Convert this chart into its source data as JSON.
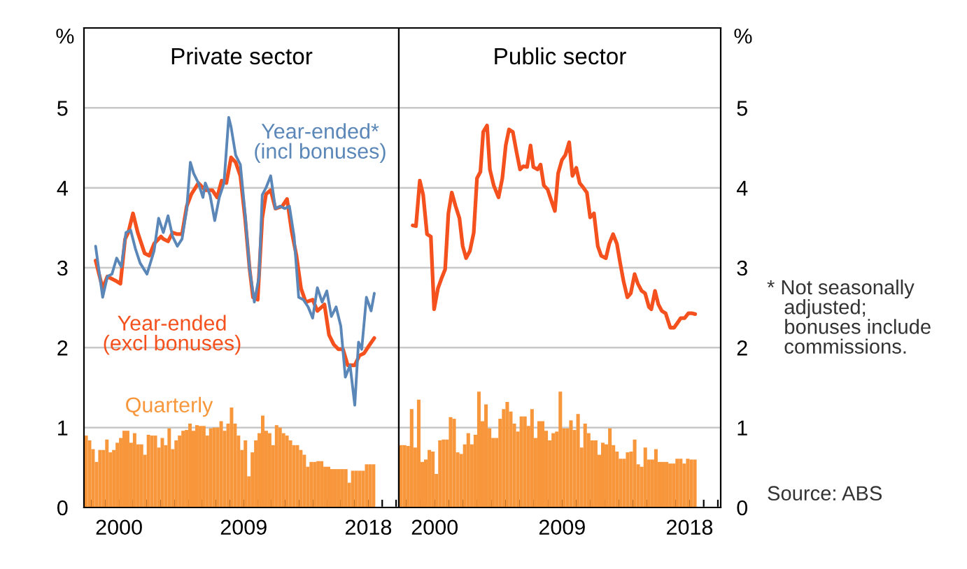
{
  "chart_data": [
    {
      "type": "line",
      "title": "Private sector",
      "ylabel": "%",
      "ylim": [
        0,
        6
      ],
      "yticks": [
        0,
        1,
        2,
        3,
        4,
        5
      ],
      "xlim": [
        1997.47,
        2020.2
      ],
      "grid": "y",
      "xticks": [
        {
          "value": 1998,
          "label": null
        },
        {
          "value": 1999,
          "label": null
        },
        {
          "value": 2000,
          "label": "2000"
        },
        {
          "value": 2001,
          "label": null
        },
        {
          "value": 2002,
          "label": null
        },
        {
          "value": 2003,
          "label": null
        },
        {
          "value": 2004,
          "label": null
        },
        {
          "value": 2005,
          "label": null
        },
        {
          "value": 2006,
          "label": null
        },
        {
          "value": 2007,
          "label": null
        },
        {
          "value": 2008,
          "label": null
        },
        {
          "value": 2009,
          "label": "2009"
        },
        {
          "value": 2010,
          "label": null
        },
        {
          "value": 2011,
          "label": null
        },
        {
          "value": 2012,
          "label": null
        },
        {
          "value": 2013,
          "label": null
        },
        {
          "value": 2014,
          "label": null
        },
        {
          "value": 2015,
          "label": null
        },
        {
          "value": 2016,
          "label": null
        },
        {
          "value": 2017,
          "label": null
        },
        {
          "value": 2018,
          "label": "2018"
        },
        {
          "value": 2019,
          "label": null
        },
        {
          "value": 2020,
          "label": null
        }
      ],
      "series": [
        {
          "name": "Quarterly",
          "type": "bar",
          "color": "#f7963a",
          "x": [
            1997.625,
            1997.875,
            1998.125,
            1998.375,
            1998.625,
            1998.875,
            1999.125,
            1999.375,
            1999.625,
            1999.875,
            2000.125,
            2000.375,
            2000.625,
            2000.875,
            2001.125,
            2001.375,
            2001.625,
            2001.875,
            2002.125,
            2002.375,
            2002.625,
            2002.875,
            2003.125,
            2003.375,
            2003.625,
            2003.875,
            2004.125,
            2004.375,
            2004.625,
            2004.875,
            2005.125,
            2005.375,
            2005.625,
            2005.875,
            2006.125,
            2006.375,
            2006.625,
            2006.875,
            2007.125,
            2007.375,
            2007.625,
            2007.875,
            2008.125,
            2008.375,
            2008.625,
            2008.875,
            2009.125,
            2009.375,
            2009.625,
            2009.875,
            2010.125,
            2010.375,
            2010.625,
            2010.875,
            2011.125,
            2011.375,
            2011.625,
            2011.875,
            2012.125,
            2012.375,
            2012.625,
            2012.875,
            2013.125,
            2013.375,
            2013.625,
            2013.875,
            2014.125,
            2014.375,
            2014.625,
            2014.875,
            2015.125,
            2015.375,
            2015.625,
            2015.875,
            2016.125,
            2016.375,
            2016.625,
            2016.875,
            2017.125,
            2017.375,
            2017.625,
            2017.875,
            2018.125,
            2018.375
          ],
          "values": [
            0.9,
            0.84,
            0.73,
            0.57,
            0.72,
            0.72,
            0.85,
            0.69,
            0.72,
            0.81,
            0.87,
            0.96,
            0.96,
            0.81,
            0.93,
            0.79,
            0.79,
            0.66,
            0.91,
            0.9,
            0.9,
            0.75,
            0.87,
            0.78,
            0.99,
            0.73,
            0.84,
            0.9,
            0.96,
            0.97,
            1.05,
            0.96,
            1.03,
            1.02,
            1.02,
            0.9,
            0.99,
            1.0,
            1.0,
            1.08,
            0.96,
            1.05,
            1.25,
            1.05,
            0.9,
            0.72,
            0.84,
            0.39,
            0.69,
            0.84,
            0.93,
            1.15,
            0.96,
            0.93,
            0.78,
            1.03,
            1.0,
            0.93,
            0.9,
            0.84,
            0.78,
            0.78,
            0.72,
            0.66,
            0.51,
            0.57,
            0.57,
            0.58,
            0.58,
            0.51,
            0.51,
            0.48,
            0.48,
            0.48,
            0.48,
            0.48,
            0.31,
            0.46,
            0.46,
            0.46,
            0.46,
            0.54,
            0.54,
            0.54
          ]
        },
        {
          "name": "Year-ended\n(excl bonuses)",
          "color": "#f4511e",
          "x": [
            1998.31,
            1998.82,
            1999.16,
            1999.83,
            2000.1,
            2000.44,
            2000.67,
            2001.01,
            2001.35,
            2001.85,
            2002.19,
            2002.53,
            2003.03,
            2003.2,
            2003.54,
            2003.87,
            2004.21,
            2004.55,
            2004.89,
            2005.22,
            2005.73,
            2006.23,
            2006.74,
            2007.08,
            2007.41,
            2007.75,
            2008.09,
            2008.42,
            2008.76,
            2009.1,
            2009.43,
            2009.67,
            2010.01,
            2010.34,
            2010.61,
            2010.95,
            2011.29,
            2011.79,
            2012.13,
            2012.47,
            2012.8,
            2013.14,
            2013.48,
            2013.98,
            2014.32,
            2014.83,
            2015.16,
            2015.5,
            2015.84,
            2016.17,
            2016.51,
            2017.02,
            2017.35,
            2017.69,
            2018.03,
            2018.43
          ],
          "values": [
            3.09,
            2.74,
            2.89,
            2.83,
            2.8,
            3.36,
            3.44,
            3.68,
            3.44,
            3.18,
            3.15,
            3.3,
            3.39,
            3.36,
            3.33,
            3.44,
            3.42,
            3.42,
            3.77,
            3.92,
            4.06,
            3.97,
            3.97,
            3.88,
            4.09,
            4.06,
            4.38,
            4.32,
            4.15,
            3.62,
            2.98,
            2.63,
            2.6,
            3.62,
            3.92,
            3.97,
            3.74,
            3.77,
            3.86,
            3.45,
            3.16,
            2.74,
            2.57,
            2.6,
            2.46,
            2.54,
            2.16,
            2.04,
            1.98,
            1.98,
            1.78,
            1.78,
            1.9,
            1.93,
            2.02,
            2.12
          ]
        },
        {
          "name": "Year-ended*\n(incl bonuses)",
          "color": "#5b87b8",
          "x": [
            1998.31,
            1998.82,
            1999.16,
            1999.49,
            1999.83,
            2000.17,
            2000.5,
            2000.84,
            2001.18,
            2001.52,
            2002.02,
            2002.53,
            2002.86,
            2003.2,
            2003.54,
            2003.87,
            2004.21,
            2004.55,
            2004.89,
            2005.15,
            2005.39,
            2005.73,
            2006.06,
            2006.23,
            2006.57,
            2006.91,
            2007.24,
            2007.58,
            2007.92,
            2008.09,
            2008.42,
            2008.76,
            2009.1,
            2009.43,
            2009.77,
            2010.11,
            2010.34,
            2010.61,
            2010.95,
            2011.29,
            2011.63,
            2011.96,
            2012.3,
            2012.64,
            2012.97,
            2013.31,
            2013.65,
            2013.98,
            2014.32,
            2014.66,
            2015.0,
            2015.33,
            2015.67,
            2016.01,
            2016.34,
            2016.68,
            2017.02,
            2017.29,
            2017.52,
            2017.86,
            2018.2,
            2018.43
          ],
          "values": [
            3.27,
            2.63,
            2.89,
            2.92,
            3.12,
            3.01,
            3.44,
            3.47,
            3.24,
            3.06,
            2.92,
            3.21,
            3.62,
            3.44,
            3.65,
            3.39,
            3.27,
            3.36,
            3.74,
            4.32,
            4.18,
            4.06,
            3.88,
            4.06,
            3.91,
            3.59,
            3.88,
            4.06,
            4.88,
            4.76,
            4.41,
            4.29,
            3.68,
            2.98,
            2.57,
            2.89,
            3.91,
            4.0,
            4.15,
            3.74,
            3.77,
            3.74,
            3.77,
            3.39,
            2.63,
            2.6,
            2.51,
            2.37,
            2.75,
            2.57,
            2.71,
            2.39,
            2.51,
            2.27,
            1.63,
            1.78,
            1.28,
            2.07,
            1.98,
            2.63,
            2.46,
            2.68
          ]
        }
      ]
    },
    {
      "type": "line",
      "title": "Public sector",
      "ylabel": "%",
      "ylim": [
        0,
        6
      ],
      "yticks": [
        0,
        1,
        2,
        3,
        4,
        5
      ],
      "xlim": [
        1997.47,
        2020.2
      ],
      "grid": "y",
      "xticks": [
        {
          "value": 1998,
          "label": null
        },
        {
          "value": 1999,
          "label": null
        },
        {
          "value": 2000,
          "label": "2000"
        },
        {
          "value": 2001,
          "label": null
        },
        {
          "value": 2002,
          "label": null
        },
        {
          "value": 2003,
          "label": null
        },
        {
          "value": 2004,
          "label": null
        },
        {
          "value": 2005,
          "label": null
        },
        {
          "value": 2006,
          "label": null
        },
        {
          "value": 2007,
          "label": null
        },
        {
          "value": 2008,
          "label": null
        },
        {
          "value": 2009,
          "label": "2009"
        },
        {
          "value": 2010,
          "label": null
        },
        {
          "value": 2011,
          "label": null
        },
        {
          "value": 2012,
          "label": null
        },
        {
          "value": 2013,
          "label": null
        },
        {
          "value": 2014,
          "label": null
        },
        {
          "value": 2015,
          "label": null
        },
        {
          "value": 2016,
          "label": null
        },
        {
          "value": 2017,
          "label": null
        },
        {
          "value": 2018,
          "label": "2018"
        },
        {
          "value": 2019,
          "label": null
        },
        {
          "value": 2020,
          "label": null
        }
      ],
      "annotations": [
        "* Not seasonally\n   adjusted;\n   bonuses include\n   commissions.",
        "Source: ABS"
      ],
      "series": [
        {
          "type": "bar",
          "color": "#f7963a",
          "x": [
            1997.625,
            1997.875,
            1998.125,
            1998.375,
            1998.625,
            1998.875,
            1999.125,
            1999.375,
            1999.625,
            1999.875,
            2000.125,
            2000.375,
            2000.625,
            2000.875,
            2001.125,
            2001.375,
            2001.625,
            2001.875,
            2002.125,
            2002.375,
            2002.625,
            2002.875,
            2003.125,
            2003.375,
            2003.625,
            2003.875,
            2004.125,
            2004.375,
            2004.625,
            2004.875,
            2005.125,
            2005.375,
            2005.625,
            2005.875,
            2006.125,
            2006.375,
            2006.625,
            2006.875,
            2007.125,
            2007.375,
            2007.625,
            2007.875,
            2008.125,
            2008.375,
            2008.625,
            2008.875,
            2009.125,
            2009.375,
            2009.625,
            2009.875,
            2010.125,
            2010.375,
            2010.625,
            2010.875,
            2011.125,
            2011.375,
            2011.625,
            2011.875,
            2012.125,
            2012.375,
            2012.625,
            2012.875,
            2013.125,
            2013.375,
            2013.625,
            2013.875,
            2014.125,
            2014.375,
            2014.625,
            2014.875,
            2015.125,
            2015.375,
            2015.625,
            2015.875,
            2016.125,
            2016.375,
            2016.625,
            2016.875,
            2017.125,
            2017.375,
            2017.625,
            2017.875,
            2018.125,
            2018.375
          ],
          "values": [
            0.78,
            0.78,
            0.77,
            1.23,
            0.75,
            1.35,
            0.57,
            0.6,
            0.72,
            0.7,
            0.42,
            0.84,
            0.85,
            0.85,
            1.13,
            1.11,
            0.69,
            0.67,
            0.79,
            0.93,
            0.79,
            0.91,
            1.45,
            1.08,
            1.29,
            0.99,
            0.87,
            0.87,
            1.11,
            1.23,
            1.32,
            1.2,
            1.05,
            0.95,
            1.14,
            1.14,
            1.02,
            1.23,
            0.87,
            1.08,
            1.08,
            0.96,
            0.84,
            0.93,
            0.95,
            1.45,
            0.99,
            0.99,
            1.09,
            0.97,
            1.17,
            0.75,
            1.05,
            0.93,
            0.84,
            0.84,
            0.66,
            0.81,
            0.79,
            0.99,
            0.78,
            0.7,
            0.61,
            0.61,
            0.69,
            0.7,
            0.85,
            0.54,
            0.51,
            0.75,
            0.6,
            0.6,
            0.73,
            0.57,
            0.57,
            0.57,
            0.55,
            0.55,
            0.61,
            0.61,
            0.55,
            0.61,
            0.6,
            0.6
          ]
        },
        {
          "color": "#f4511e",
          "x": [
            1998.45,
            1998.68,
            1998.95,
            1999.19,
            1999.46,
            1999.73,
            1999.96,
            2000.23,
            2000.47,
            2000.74,
            2000.97,
            2001.21,
            2001.48,
            2001.75,
            2001.98,
            2002.22,
            2002.49,
            2002.76,
            2002.99,
            2003.23,
            2003.43,
            2003.7,
            2003.9,
            2004.17,
            2004.51,
            2004.78,
            2005.02,
            2005.25,
            2005.52,
            2005.79,
            2006.03,
            2006.26,
            2006.53,
            2006.77,
            2006.97,
            2007.27,
            2007.48,
            2007.71,
            2007.98,
            2008.22,
            2008.49,
            2008.72,
            2008.99,
            2009.23,
            2009.5,
            2009.73,
            2010.0,
            2010.24,
            2010.51,
            2010.75,
            2010.98,
            2011.25,
            2011.52,
            2011.76,
            2012.09,
            2012.33,
            2012.6,
            2012.87,
            2013.1,
            2013.34,
            2013.61,
            2013.85,
            2014.12,
            2014.35,
            2014.62,
            2014.86,
            2015.13,
            2015.3,
            2015.56,
            2015.8,
            2016.04,
            2016.31,
            2016.64,
            2016.91,
            2017.15,
            2017.38,
            2017.65,
            2017.92,
            2018.16,
            2018.4
          ],
          "values": [
            3.53,
            3.52,
            4.09,
            3.91,
            3.42,
            3.39,
            2.48,
            2.74,
            2.86,
            2.98,
            3.68,
            3.94,
            3.77,
            3.62,
            3.27,
            3.12,
            3.21,
            3.44,
            4.12,
            4.2,
            4.7,
            4.78,
            4.23,
            4.03,
            3.88,
            4.12,
            4.53,
            4.73,
            4.7,
            4.44,
            4.23,
            4.27,
            4.26,
            4.53,
            4.26,
            4.23,
            4.29,
            4.03,
            3.98,
            3.85,
            3.71,
            4.18,
            4.35,
            4.41,
            4.57,
            4.15,
            4.25,
            4.06,
            4.0,
            3.94,
            3.63,
            3.68,
            3.27,
            3.15,
            3.12,
            3.3,
            3.42,
            3.3,
            3.06,
            2.83,
            2.63,
            2.68,
            2.92,
            2.8,
            2.71,
            2.68,
            2.51,
            2.48,
            2.71,
            2.54,
            2.46,
            2.43,
            2.25,
            2.25,
            2.31,
            2.37,
            2.37,
            2.43,
            2.43,
            2.42
          ]
        }
      ]
    }
  ]
}
